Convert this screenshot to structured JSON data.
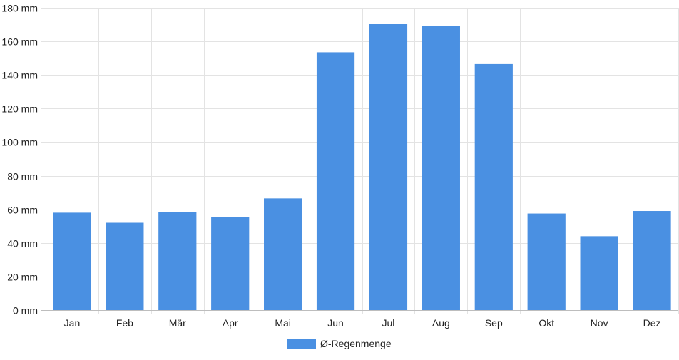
{
  "chart_data": {
    "type": "bar",
    "categories": [
      "Jan",
      "Feb",
      "Mär",
      "Apr",
      "Mai",
      "Jun",
      "Jul",
      "Aug",
      "Sep",
      "Okt",
      "Nov",
      "Dez"
    ],
    "series": [
      {
        "name": "Ø-Regenmenge",
        "values": [
          58,
          52,
          58.5,
          55.5,
          66.5,
          153.5,
          170.5,
          169,
          146.5,
          57.5,
          44,
          59
        ],
        "color": "#4a90e2"
      }
    ],
    "y_unit_suffix": " mm",
    "ylim": [
      0,
      180
    ],
    "y_ticks": [
      0,
      20,
      40,
      60,
      80,
      100,
      120,
      140,
      160,
      180
    ],
    "grid": true,
    "legend_position": "bottom-center"
  }
}
